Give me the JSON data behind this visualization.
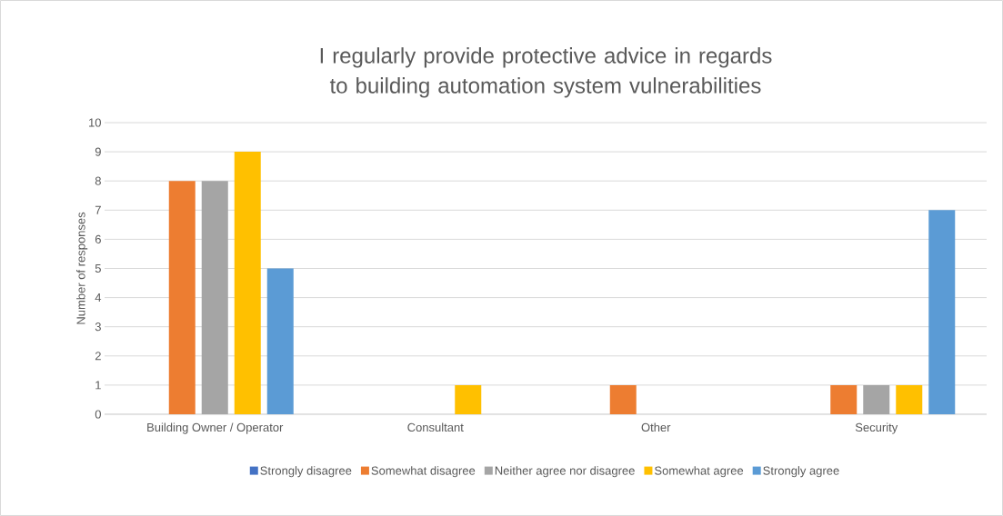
{
  "chart_data": {
    "type": "bar",
    "title": "I regularly provide protective advice in regards to building automation system vulnerabilities",
    "ylabel": "Number of responses",
    "categories": [
      "Building Owner / Operator",
      "Consultant",
      "Other",
      "Security"
    ],
    "series": [
      {
        "name": "Strongly disagree",
        "color": "#4472c4",
        "values": [
          0,
          0,
          0,
          0
        ]
      },
      {
        "name": "Somewhat disagree",
        "color": "#ed7d31",
        "values": [
          8,
          0,
          1,
          1
        ]
      },
      {
        "name": "Neither agree nor disagree",
        "color": "#a5a5a5",
        "values": [
          8,
          0,
          0,
          1
        ]
      },
      {
        "name": "Somewhat agree",
        "color": "#ffc000",
        "values": [
          9,
          1,
          0,
          1
        ]
      },
      {
        "name": "Strongly agree",
        "color": "#5b9bd5",
        "values": [
          5,
          0,
          0,
          7
        ]
      }
    ],
    "ylim": [
      0,
      10
    ],
    "yticks": [
      0,
      1,
      2,
      3,
      4,
      5,
      6,
      7,
      8,
      9,
      10
    ],
    "grid": "y",
    "legend": "bottom"
  }
}
